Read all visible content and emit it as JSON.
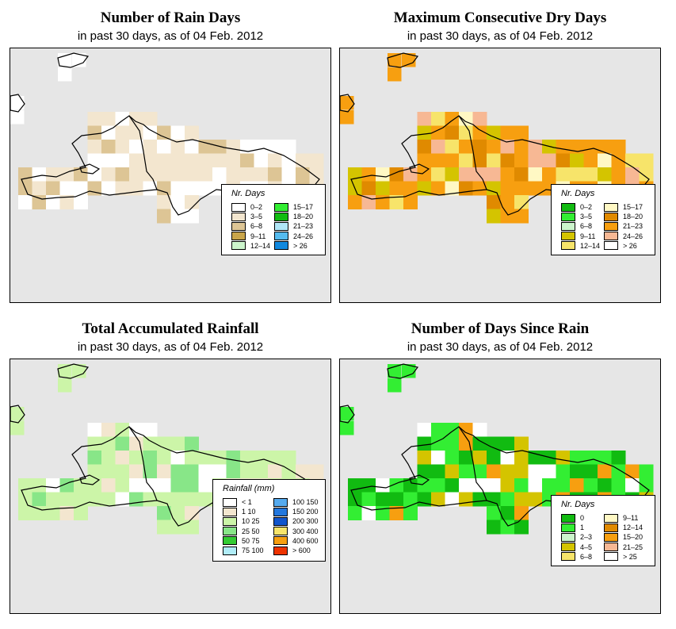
{
  "panels": [
    {
      "title": "Number of Rain Days",
      "subtitle": "in past 30 days, as of  04 Feb. 2012",
      "legend": {
        "title": "Nr. Days",
        "items": [
          {
            "label": "0–2",
            "color": "#ffffff"
          },
          {
            "label": "3–5",
            "color": "#f3e6cf"
          },
          {
            "label": "6–8",
            "color": "#ddc595"
          },
          {
            "label": "9–11",
            "color": "#c9a54a"
          },
          {
            "label": "12–14",
            "color": "#ccf5cc"
          },
          {
            "label": "15–17",
            "color": "#33ee33"
          },
          {
            "label": "18–20",
            "color": "#11bb11"
          },
          {
            "label": "21–23",
            "color": "#b0e6f7"
          },
          {
            "label": "24–26",
            "color": "#55bbee"
          },
          {
            "label": "> 26",
            "color": "#1188dd"
          }
        ]
      }
    },
    {
      "title": "Maximum Consecutive Dry Days",
      "subtitle": "in past 30 days, as of  04 Feb. 2012",
      "legend": {
        "title": "Nr. Days",
        "items": [
          {
            "label": "0–2",
            "color": "#11bb11"
          },
          {
            "label": "3–5",
            "color": "#33ee33"
          },
          {
            "label": "6–8",
            "color": "#ccf5cc"
          },
          {
            "label": "9–11",
            "color": "#d4c400"
          },
          {
            "label": "12–14",
            "color": "#f7e46a"
          },
          {
            "label": "15–17",
            "color": "#fff8c4"
          },
          {
            "label": "18–20",
            "color": "#e08a00"
          },
          {
            "label": "21–23",
            "color": "#f79f10"
          },
          {
            "label": "24–26",
            "color": "#f7b894"
          },
          {
            "label": "> 26",
            "color": "#ffffff"
          }
        ]
      }
    },
    {
      "title": "Total Accumulated Rainfall",
      "subtitle": "in past 30 days, as of  04 Feb. 2012",
      "legend": {
        "title": "Rainfall (mm)",
        "items": [
          {
            "label": "< 1",
            "color": "#ffffff"
          },
          {
            "label": "1    10",
            "color": "#f3e6cf"
          },
          {
            "label": "10    25",
            "color": "#ccf5a8"
          },
          {
            "label": "25    50",
            "color": "#88e688"
          },
          {
            "label": "50    75",
            "color": "#33cc33"
          },
          {
            "label": "75   100",
            "color": "#b0ecf7"
          },
          {
            "label": "100   150",
            "color": "#55aaee"
          },
          {
            "label": "150   200",
            "color": "#2277dd"
          },
          {
            "label": "200   300",
            "color": "#1155cc"
          },
          {
            "label": "300   400",
            "color": "#f7e46a"
          },
          {
            "label": "400   600",
            "color": "#f79f10"
          },
          {
            "label": "> 600",
            "color": "#ee3300"
          }
        ]
      }
    },
    {
      "title": "Number of Days Since Rain",
      "subtitle": "in past 30 days, as of  04 Feb. 2012",
      "legend": {
        "title": "Nr. Days",
        "items": [
          {
            "label": "0",
            "color": "#11bb11"
          },
          {
            "label": "1",
            "color": "#33ee33"
          },
          {
            "label": "2–3",
            "color": "#ccf5cc"
          },
          {
            "label": "4–5",
            "color": "#d4c400"
          },
          {
            "label": "6–8",
            "color": "#f7e46a"
          },
          {
            "label": "9–11",
            "color": "#fff8c4"
          },
          {
            "label": "12–14",
            "color": "#e08a00"
          },
          {
            "label": "15–20",
            "color": "#f79f10"
          },
          {
            "label": "21–25",
            "color": "#f7b894"
          },
          {
            "label": "> 25",
            "color": "#ffffff"
          }
        ]
      }
    }
  ]
}
